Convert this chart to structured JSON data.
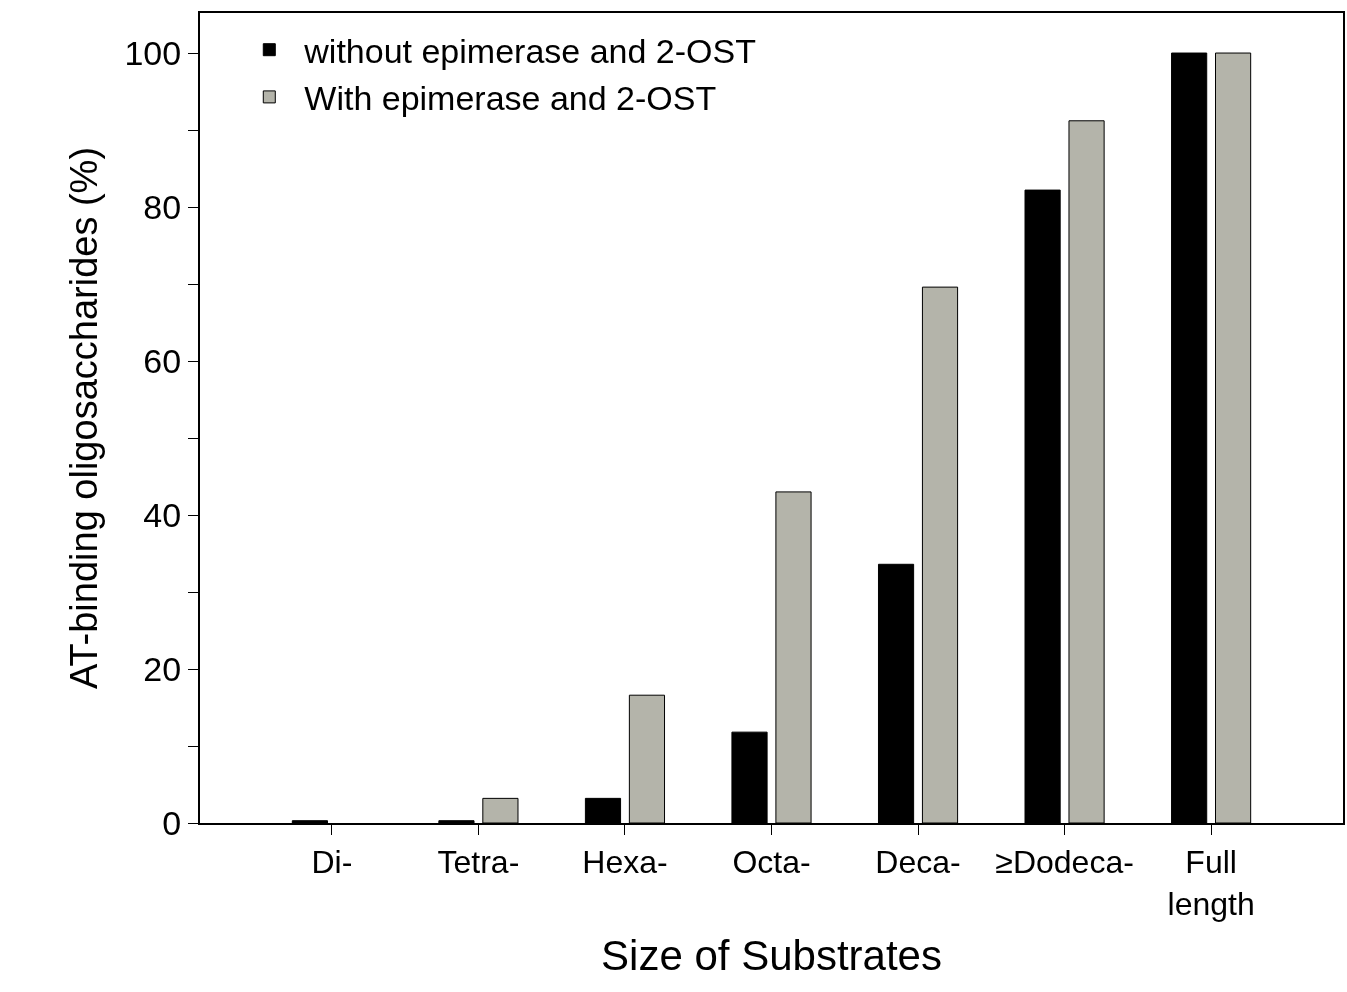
{
  "chart_data": {
    "type": "bar",
    "xlabel": "Size of Substrates",
    "ylabel": "AT-binding oligosaccharides (%)",
    "categories": [
      "Di-",
      "Tetra-",
      "Hexa-",
      "Octa-",
      "Deca-",
      "≥Dodeca-",
      "Full\nlength"
    ],
    "series": [
      {
        "name": "without epimerase and 2-OST",
        "color": "#000000",
        "values": [
          0.3,
          0.3,
          3.2,
          11.8,
          33.6,
          82.2,
          100
        ]
      },
      {
        "name": "With epimerase and 2-OST",
        "color": "#b4b4aa",
        "values": [
          null,
          3.2,
          16.6,
          43,
          69.6,
          91.2,
          100
        ]
      }
    ],
    "ylim": [
      0,
      105.2
    ],
    "yticks": [
      0,
      {
        "value": 10,
        "label": null
      },
      20,
      {
        "value": 30,
        "label": null
      },
      40,
      {
        "value": 50,
        "label": null
      },
      60,
      {
        "value": 70,
        "label": null
      },
      80,
      {
        "value": 90,
        "label": null
      },
      100
    ],
    "grid": false,
    "legend": "top left"
  }
}
